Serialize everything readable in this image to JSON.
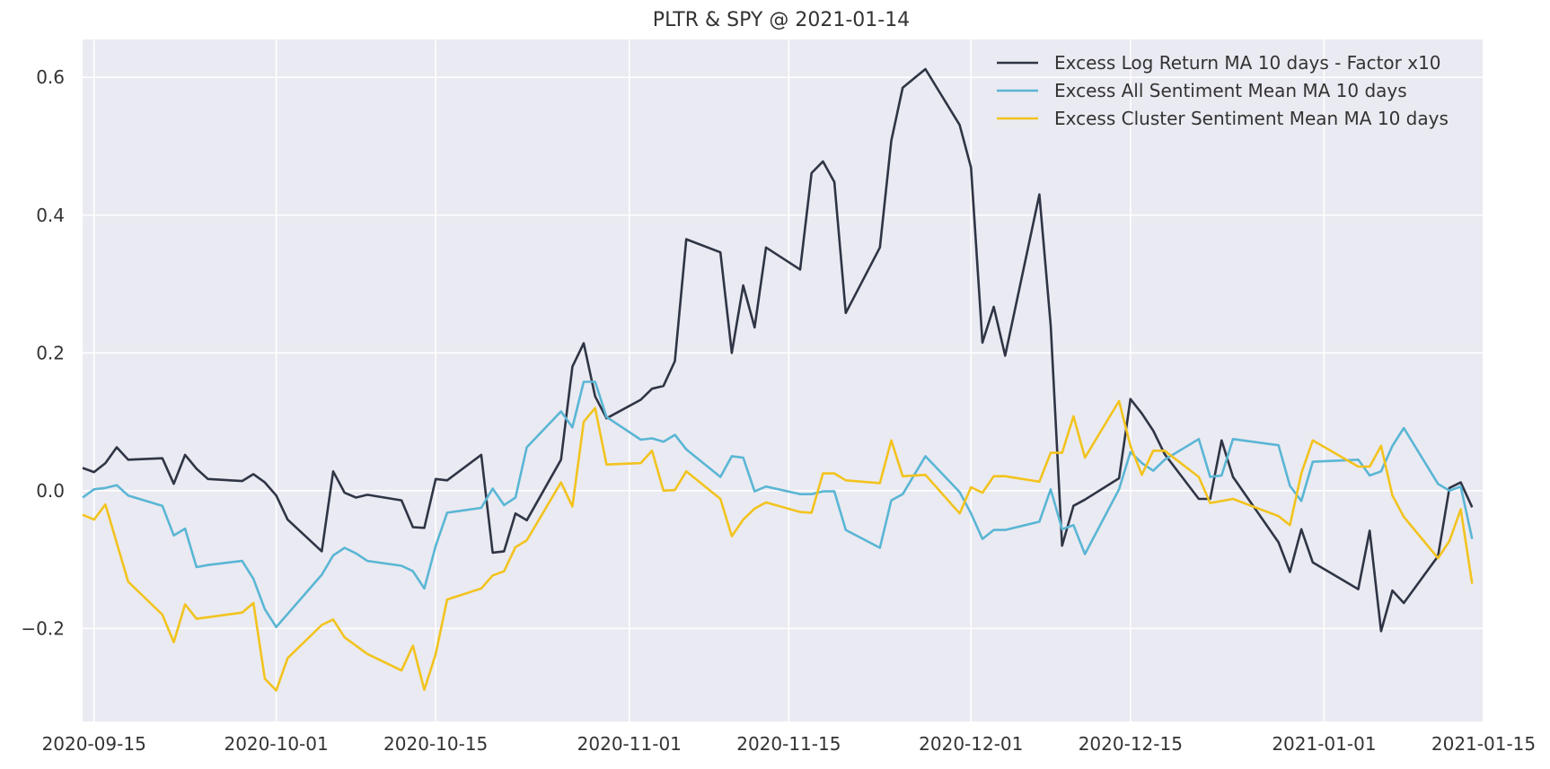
{
  "chart_data": {
    "type": "line",
    "title": "PLTR & SPY @ 2021-01-14",
    "xlabel": "",
    "ylabel": "",
    "xlim": [
      "2020-09-14",
      "2021-01-15"
    ],
    "ylim": [
      -0.335,
      0.655
    ],
    "grid": true,
    "legend_position": "top-right",
    "x_ticks": [
      {
        "date": "2020-09-15",
        "label": "2020-09-15"
      },
      {
        "date": "2020-10-01",
        "label": "2020-10-01"
      },
      {
        "date": "2020-10-15",
        "label": "2020-10-15"
      },
      {
        "date": "2020-11-01",
        "label": "2020-11-01"
      },
      {
        "date": "2020-11-15",
        "label": "2020-11-15"
      },
      {
        "date": "2020-12-01",
        "label": "2020-12-01"
      },
      {
        "date": "2020-12-15",
        "label": "2020-12-15"
      },
      {
        "date": "2021-01-01",
        "label": "2021-01-01"
      },
      {
        "date": "2021-01-15",
        "label": "2021-01-15"
      }
    ],
    "y_ticks": [
      {
        "value": 0.6,
        "label": "0.6"
      },
      {
        "value": 0.4,
        "label": "0.4"
      },
      {
        "value": 0.2,
        "label": "0.2"
      },
      {
        "value": 0.0,
        "label": "0.0"
      },
      {
        "value": -0.2,
        "label": "−0.2"
      }
    ],
    "series": [
      {
        "name": "Excess Log Return MA 10 days - Factor x10",
        "color": "#2f3545",
        "points": [
          [
            "2020-09-14",
            0.033
          ],
          [
            "2020-09-15",
            0.027
          ],
          [
            "2020-09-16",
            0.04
          ],
          [
            "2020-09-17",
            0.063
          ],
          [
            "2020-09-18",
            0.045
          ],
          [
            "2020-09-21",
            0.047
          ],
          [
            "2020-09-22",
            0.01
          ],
          [
            "2020-09-23",
            0.052
          ],
          [
            "2020-09-24",
            0.032
          ],
          [
            "2020-09-25",
            0.017
          ],
          [
            "2020-09-28",
            0.014
          ],
          [
            "2020-09-29",
            0.024
          ],
          [
            "2020-09-30",
            0.012
          ],
          [
            "2020-10-01",
            -0.007
          ],
          [
            "2020-10-02",
            -0.042
          ],
          [
            "2020-10-05",
            -0.088
          ],
          [
            "2020-10-06",
            0.028
          ],
          [
            "2020-10-07",
            -0.003
          ],
          [
            "2020-10-08",
            -0.01
          ],
          [
            "2020-10-09",
            -0.006
          ],
          [
            "2020-10-12",
            -0.014
          ],
          [
            "2020-10-13",
            -0.053
          ],
          [
            "2020-10-14",
            -0.054
          ],
          [
            "2020-10-15",
            0.017
          ],
          [
            "2020-10-16",
            0.015
          ],
          [
            "2020-10-19",
            0.052
          ],
          [
            "2020-10-20",
            -0.09
          ],
          [
            "2020-10-21",
            -0.088
          ],
          [
            "2020-10-22",
            -0.033
          ],
          [
            "2020-10-23",
            -0.043
          ],
          [
            "2020-10-26",
            0.045
          ],
          [
            "2020-10-27",
            0.18
          ],
          [
            "2020-10-28",
            0.214
          ],
          [
            "2020-10-29",
            0.137
          ],
          [
            "2020-10-30",
            0.105
          ],
          [
            "2020-11-02",
            0.132
          ],
          [
            "2020-11-03",
            0.148
          ],
          [
            "2020-11-04",
            0.152
          ],
          [
            "2020-11-05",
            0.188
          ],
          [
            "2020-11-06",
            0.365
          ],
          [
            "2020-11-09",
            0.346
          ],
          [
            "2020-11-10",
            0.2
          ],
          [
            "2020-11-11",
            0.298
          ],
          [
            "2020-11-12",
            0.237
          ],
          [
            "2020-11-13",
            0.353
          ],
          [
            "2020-11-16",
            0.321
          ],
          [
            "2020-11-17",
            0.461
          ],
          [
            "2020-11-18",
            0.478
          ],
          [
            "2020-11-19",
            0.448
          ],
          [
            "2020-11-20",
            0.258
          ],
          [
            "2020-11-23",
            0.353
          ],
          [
            "2020-11-24",
            0.508
          ],
          [
            "2020-11-25",
            0.585
          ],
          [
            "2020-11-27",
            0.612
          ],
          [
            "2020-11-30",
            0.531
          ],
          [
            "2020-12-01",
            0.469
          ],
          [
            "2020-12-02",
            0.215
          ],
          [
            "2020-12-03",
            0.267
          ],
          [
            "2020-12-04",
            0.196
          ],
          [
            "2020-12-07",
            0.43
          ],
          [
            "2020-12-08",
            0.24
          ],
          [
            "2020-12-09",
            -0.08
          ],
          [
            "2020-12-10",
            -0.022
          ],
          [
            "2020-12-11",
            -0.013
          ],
          [
            "2020-12-14",
            0.018
          ],
          [
            "2020-12-15",
            0.133
          ],
          [
            "2020-12-16",
            0.112
          ],
          [
            "2020-12-17",
            0.087
          ],
          [
            "2020-12-18",
            0.053
          ],
          [
            "2020-12-21",
            -0.012
          ],
          [
            "2020-12-22",
            -0.012
          ],
          [
            "2020-12-23",
            0.073
          ],
          [
            "2020-12-24",
            0.02
          ],
          [
            "2020-12-28",
            -0.075
          ],
          [
            "2020-12-29",
            -0.118
          ],
          [
            "2020-12-30",
            -0.056
          ],
          [
            "2020-12-31",
            -0.104
          ],
          [
            "2021-01-04",
            -0.143
          ],
          [
            "2021-01-05",
            -0.058
          ],
          [
            "2021-01-06",
            -0.204
          ],
          [
            "2021-01-07",
            -0.145
          ],
          [
            "2021-01-08",
            -0.163
          ],
          [
            "2021-01-11",
            -0.095
          ],
          [
            "2021-01-12",
            0.004
          ],
          [
            "2021-01-13",
            0.012
          ],
          [
            "2021-01-14",
            -0.024
          ]
        ]
      },
      {
        "name": "Excess All Sentiment Mean MA 10 days",
        "color": "#5ab6d4",
        "points": [
          [
            "2020-09-14",
            -0.01
          ],
          [
            "2020-09-15",
            0.002
          ],
          [
            "2020-09-16",
            0.004
          ],
          [
            "2020-09-17",
            0.008
          ],
          [
            "2020-09-18",
            -0.007
          ],
          [
            "2020-09-21",
            -0.022
          ],
          [
            "2020-09-22",
            -0.065
          ],
          [
            "2020-09-23",
            -0.055
          ],
          [
            "2020-09-24",
            -0.111
          ],
          [
            "2020-09-25",
            -0.108
          ],
          [
            "2020-09-28",
            -0.102
          ],
          [
            "2020-09-29",
            -0.128
          ],
          [
            "2020-09-30",
            -0.172
          ],
          [
            "2020-10-01",
            -0.198
          ],
          [
            "2020-10-05",
            -0.122
          ],
          [
            "2020-10-06",
            -0.094
          ],
          [
            "2020-10-07",
            -0.083
          ],
          [
            "2020-10-08",
            -0.091
          ],
          [
            "2020-10-09",
            -0.102
          ],
          [
            "2020-10-12",
            -0.109
          ],
          [
            "2020-10-13",
            -0.117
          ],
          [
            "2020-10-14",
            -0.142
          ],
          [
            "2020-10-15",
            -0.08
          ],
          [
            "2020-10-16",
            -0.032
          ],
          [
            "2020-10-19",
            -0.025
          ],
          [
            "2020-10-20",
            0.003
          ],
          [
            "2020-10-21",
            -0.021
          ],
          [
            "2020-10-22",
            -0.01
          ],
          [
            "2020-10-23",
            0.063
          ],
          [
            "2020-10-26",
            0.115
          ],
          [
            "2020-10-27",
            0.092
          ],
          [
            "2020-10-28",
            0.158
          ],
          [
            "2020-10-29",
            0.158
          ],
          [
            "2020-10-30",
            0.107
          ],
          [
            "2020-11-02",
            0.074
          ],
          [
            "2020-11-03",
            0.076
          ],
          [
            "2020-11-04",
            0.071
          ],
          [
            "2020-11-05",
            0.081
          ],
          [
            "2020-11-06",
            0.06
          ],
          [
            "2020-11-09",
            0.02
          ],
          [
            "2020-11-10",
            0.05
          ],
          [
            "2020-11-11",
            0.048
          ],
          [
            "2020-11-12",
            -0.001
          ],
          [
            "2020-11-13",
            0.006
          ],
          [
            "2020-11-16",
            -0.005
          ],
          [
            "2020-11-17",
            -0.005
          ],
          [
            "2020-11-18",
            -0.001
          ],
          [
            "2020-11-19",
            -0.001
          ],
          [
            "2020-11-20",
            -0.057
          ],
          [
            "2020-11-23",
            -0.083
          ],
          [
            "2020-11-24",
            -0.014
          ],
          [
            "2020-11-25",
            -0.005
          ],
          [
            "2020-11-27",
            0.05
          ],
          [
            "2020-11-30",
            -0.002
          ],
          [
            "2020-12-01",
            -0.033
          ],
          [
            "2020-12-02",
            -0.07
          ],
          [
            "2020-12-03",
            -0.057
          ],
          [
            "2020-12-04",
            -0.057
          ],
          [
            "2020-12-07",
            -0.045
          ],
          [
            "2020-12-08",
            0.002
          ],
          [
            "2020-12-09",
            -0.056
          ],
          [
            "2020-12-10",
            -0.05
          ],
          [
            "2020-12-11",
            -0.092
          ],
          [
            "2020-12-14",
            0.002
          ],
          [
            "2020-12-15",
            0.056
          ],
          [
            "2020-12-16",
            0.04
          ],
          [
            "2020-12-17",
            0.029
          ],
          [
            "2020-12-18",
            0.045
          ],
          [
            "2020-12-21",
            0.075
          ],
          [
            "2020-12-22",
            0.02
          ],
          [
            "2020-12-23",
            0.022
          ],
          [
            "2020-12-24",
            0.075
          ],
          [
            "2020-12-28",
            0.066
          ],
          [
            "2020-12-29",
            0.007
          ],
          [
            "2020-12-30",
            -0.015
          ],
          [
            "2020-12-31",
            0.042
          ],
          [
            "2021-01-04",
            0.045
          ],
          [
            "2021-01-05",
            0.022
          ],
          [
            "2021-01-06",
            0.028
          ],
          [
            "2021-01-07",
            0.065
          ],
          [
            "2021-01-08",
            0.091
          ],
          [
            "2021-01-11",
            0.01
          ],
          [
            "2021-01-12",
            0.0
          ],
          [
            "2021-01-13",
            0.006
          ],
          [
            "2021-01-14",
            -0.07
          ]
        ]
      },
      {
        "name": "Excess Cluster Sentiment Mean MA 10 days",
        "color": "#f2c31e",
        "points": [
          [
            "2020-09-14",
            -0.035
          ],
          [
            "2020-09-15",
            -0.042
          ],
          [
            "2020-09-16",
            -0.02
          ],
          [
            "2020-09-18",
            -0.132
          ],
          [
            "2020-09-21",
            -0.18
          ],
          [
            "2020-09-22",
            -0.22
          ],
          [
            "2020-09-23",
            -0.165
          ],
          [
            "2020-09-24",
            -0.186
          ],
          [
            "2020-09-28",
            -0.177
          ],
          [
            "2020-09-29",
            -0.163
          ],
          [
            "2020-09-30",
            -0.273
          ],
          [
            "2020-10-01",
            -0.29
          ],
          [
            "2020-10-02",
            -0.243
          ],
          [
            "2020-10-05",
            -0.195
          ],
          [
            "2020-10-06",
            -0.187
          ],
          [
            "2020-10-07",
            -0.213
          ],
          [
            "2020-10-09",
            -0.237
          ],
          [
            "2020-10-12",
            -0.261
          ],
          [
            "2020-10-13",
            -0.225
          ],
          [
            "2020-10-14",
            -0.289
          ],
          [
            "2020-10-15",
            -0.237
          ],
          [
            "2020-10-16",
            -0.158
          ],
          [
            "2020-10-19",
            -0.142
          ],
          [
            "2020-10-20",
            -0.123
          ],
          [
            "2020-10-21",
            -0.117
          ],
          [
            "2020-10-22",
            -0.082
          ],
          [
            "2020-10-23",
            -0.072
          ],
          [
            "2020-10-26",
            0.012
          ],
          [
            "2020-10-27",
            -0.023
          ],
          [
            "2020-10-28",
            0.1
          ],
          [
            "2020-10-29",
            0.12
          ],
          [
            "2020-10-30",
            0.038
          ],
          [
            "2020-11-02",
            0.04
          ],
          [
            "2020-11-03",
            0.058
          ],
          [
            "2020-11-04",
            0.0
          ],
          [
            "2020-11-05",
            0.001
          ],
          [
            "2020-11-06",
            0.028
          ],
          [
            "2020-11-09",
            -0.012
          ],
          [
            "2020-11-10",
            -0.066
          ],
          [
            "2020-11-11",
            -0.042
          ],
          [
            "2020-11-12",
            -0.026
          ],
          [
            "2020-11-13",
            -0.017
          ],
          [
            "2020-11-16",
            -0.031
          ],
          [
            "2020-11-17",
            -0.032
          ],
          [
            "2020-11-18",
            0.025
          ],
          [
            "2020-11-19",
            0.025
          ],
          [
            "2020-11-20",
            0.015
          ],
          [
            "2020-11-23",
            0.011
          ],
          [
            "2020-11-24",
            0.073
          ],
          [
            "2020-11-25",
            0.021
          ],
          [
            "2020-11-27",
            0.023
          ],
          [
            "2020-11-30",
            -0.033
          ],
          [
            "2020-12-01",
            0.005
          ],
          [
            "2020-12-02",
            -0.003
          ],
          [
            "2020-12-03",
            0.021
          ],
          [
            "2020-12-04",
            0.021
          ],
          [
            "2020-12-07",
            0.013
          ],
          [
            "2020-12-08",
            0.055
          ],
          [
            "2020-12-09",
            0.055
          ],
          [
            "2020-12-10",
            0.108
          ],
          [
            "2020-12-11",
            0.048
          ],
          [
            "2020-12-14",
            0.13
          ],
          [
            "2020-12-15",
            0.065
          ],
          [
            "2020-12-16",
            0.023
          ],
          [
            "2020-12-17",
            0.058
          ],
          [
            "2020-12-18",
            0.058
          ],
          [
            "2020-12-21",
            0.02
          ],
          [
            "2020-12-22",
            -0.018
          ],
          [
            "2020-12-24",
            -0.012
          ],
          [
            "2020-12-28",
            -0.037
          ],
          [
            "2020-12-29",
            -0.05
          ],
          [
            "2020-12-30",
            0.025
          ],
          [
            "2020-12-31",
            0.073
          ],
          [
            "2021-01-04",
            0.035
          ],
          [
            "2021-01-05",
            0.035
          ],
          [
            "2021-01-06",
            0.065
          ],
          [
            "2021-01-07",
            -0.007
          ],
          [
            "2021-01-08",
            -0.038
          ],
          [
            "2021-01-11",
            -0.098
          ],
          [
            "2021-01-12",
            -0.073
          ],
          [
            "2021-01-13",
            -0.027
          ],
          [
            "2021-01-14",
            -0.135
          ]
        ]
      }
    ]
  }
}
